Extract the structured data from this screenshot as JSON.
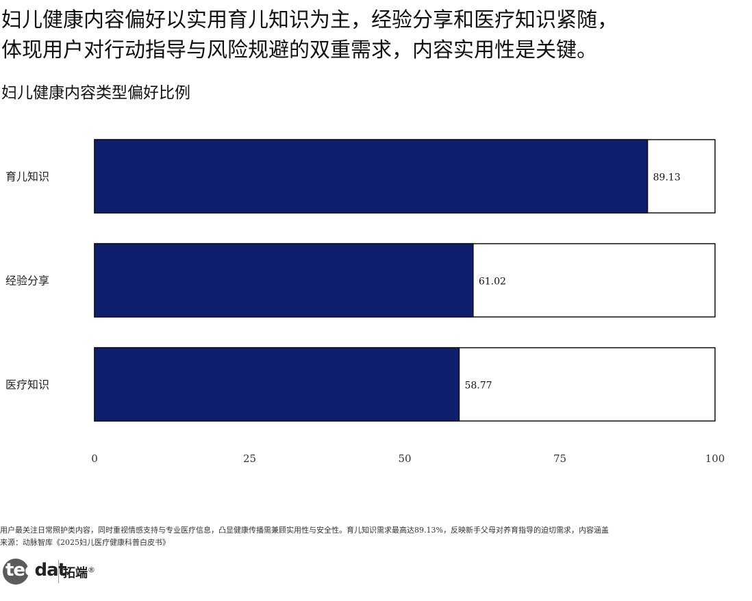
{
  "headline": {
    "line1": "妇儿健康内容偏好以实用育儿知识为主，经验分享和医疗知识紧随，",
    "line2": "体现用户对行动指导与风险规避的双重需求，内容实用性是关键。"
  },
  "chart_data": {
    "type": "bar",
    "orientation": "horizontal",
    "title": "妇儿健康内容类型偏好比例",
    "categories": [
      "育儿知识",
      "经验分享",
      "医疗知识"
    ],
    "values": [
      89.13,
      61.02,
      58.77
    ],
    "value_labels": [
      "89.13",
      "61.02",
      "58.77"
    ],
    "xlim": [
      0,
      100
    ],
    "xticks": [
      "0",
      "25",
      "50",
      "75",
      "100"
    ],
    "bar_color": "#0f1f6e",
    "background_bar_color": "#ffffff",
    "grid": false,
    "legend": "none"
  },
  "footer": {
    "note": "用户最关注日常照护类内容，同时重视情感支持与专业医疗信息，凸显健康传播需兼顾实用性与安全性。育儿知识需求最高达89.13%，反映新手父母对养育指导的迫切需求，内容涵盖",
    "source": "来源：动脉智库《2025妇儿医疗健康科普白皮书》"
  },
  "logo": {
    "text_a": "tec",
    "text_b": "dat",
    "cn": "拓端",
    "mark": "®"
  }
}
